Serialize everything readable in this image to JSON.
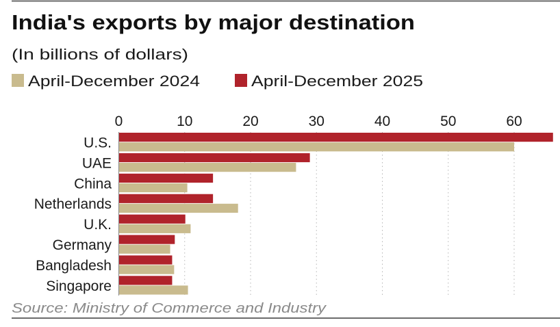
{
  "chart_data": {
    "type": "bar",
    "orientation": "horizontal",
    "title": "India's exports by major destination",
    "subtitle": "(In billions of dollars)",
    "source": "Source: Ministry of Commerce and Industry",
    "xlabel": "",
    "ylabel": "",
    "xlim": [
      0,
      66
    ],
    "xticks": [
      0,
      10,
      20,
      30,
      40,
      50,
      60
    ],
    "xtick_labels": [
      "0",
      "10",
      "20",
      "30",
      "40",
      "50",
      "60"
    ],
    "grid": true,
    "legend_position": "top-left",
    "categories": [
      "U.S.",
      "UAE",
      "China",
      "Netherlands",
      "U.K.",
      "Germany",
      "Bangladesh",
      "Singapore"
    ],
    "series": [
      {
        "name": "April-December 2024",
        "color": "#C9BB8E",
        "values": [
          60.0,
          26.9,
          10.4,
          18.1,
          10.9,
          7.8,
          8.4,
          10.5
        ]
      },
      {
        "name": "April-December 2025",
        "color": "#B0232B",
        "values": [
          65.9,
          29.0,
          14.3,
          14.3,
          10.1,
          8.5,
          8.1,
          8.1
        ]
      }
    ]
  }
}
